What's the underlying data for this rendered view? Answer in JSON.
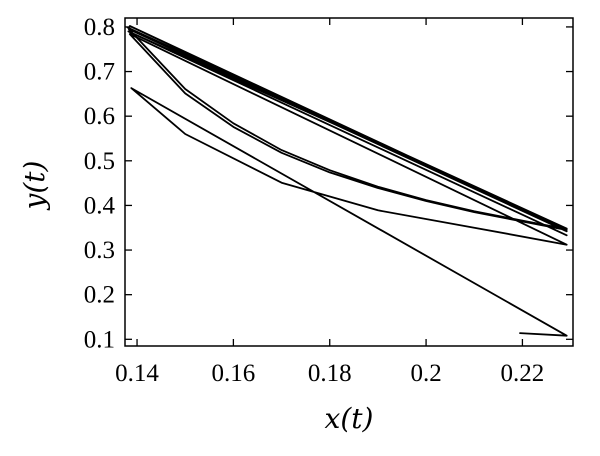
{
  "chart_data": {
    "type": "line",
    "title": "",
    "xlabel": "x(t)",
    "ylabel": "y(t)",
    "xlim": [
      0.1375,
      0.2305
    ],
    "ylim": [
      0.085,
      0.82
    ],
    "x_ticks": [
      0.14,
      0.16,
      0.18,
      0.2,
      0.22
    ],
    "x_tick_labels": [
      "0.14",
      "0.16",
      "0.18",
      "0.2",
      "0.22"
    ],
    "y_ticks": [
      0.1,
      0.2,
      0.3,
      0.4,
      0.5,
      0.6,
      0.7,
      0.8
    ],
    "y_tick_labels": [
      "0.1",
      "0.2",
      "0.3",
      "0.4",
      "0.5",
      "0.6",
      "0.7",
      "0.8"
    ],
    "grid": false,
    "legend": "none",
    "line_color": "#000000",
    "series": [
      {
        "points": [
          [
            0.2195,
            0.114
          ],
          [
            0.2292,
            0.108
          ],
          [
            0.1388,
            0.663
          ],
          [
            0.15,
            0.56
          ],
          [
            0.17,
            0.451
          ],
          [
            0.19,
            0.389
          ],
          [
            0.21,
            0.35
          ],
          [
            0.2292,
            0.312
          ],
          [
            0.1385,
            0.784
          ],
          [
            0.15,
            0.651
          ],
          [
            0.16,
            0.576
          ],
          [
            0.17,
            0.518
          ],
          [
            0.18,
            0.474
          ],
          [
            0.19,
            0.439
          ],
          [
            0.2,
            0.41
          ],
          [
            0.21,
            0.385
          ],
          [
            0.22,
            0.364
          ],
          [
            0.2292,
            0.345
          ],
          [
            0.1385,
            0.802
          ],
          [
            0.2292,
            0.342
          ],
          [
            0.1383,
            0.795
          ],
          [
            0.15,
            0.661
          ],
          [
            0.16,
            0.584
          ],
          [
            0.17,
            0.524
          ],
          [
            0.18,
            0.479
          ],
          [
            0.19,
            0.442
          ],
          [
            0.2,
            0.412
          ],
          [
            0.21,
            0.387
          ],
          [
            0.22,
            0.366
          ],
          [
            0.2292,
            0.347
          ],
          [
            0.138,
            0.799
          ],
          [
            0.2292,
            0.348
          ],
          [
            0.1382,
            0.79
          ],
          [
            0.2292,
            0.333
          ]
        ]
      }
    ]
  }
}
